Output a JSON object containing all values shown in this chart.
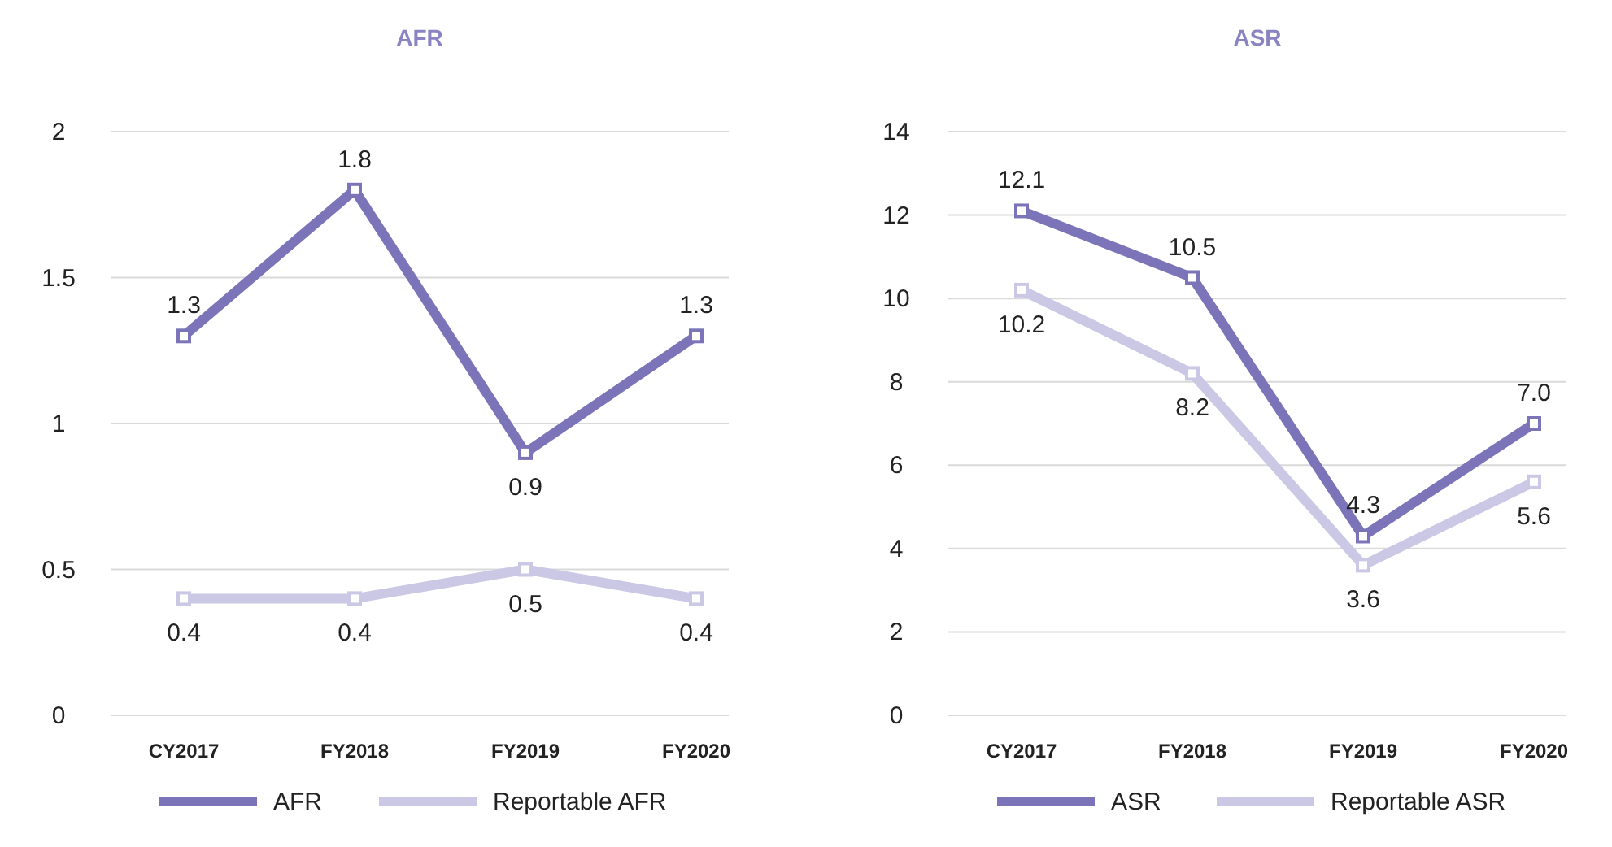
{
  "chart_data": [
    {
      "type": "line",
      "title": "AFR",
      "categories": [
        "CY2017",
        "FY2018",
        "FY2019",
        "FY2020"
      ],
      "ylim": [
        0,
        2
      ],
      "yticks": [
        0,
        0.5,
        1,
        1.5,
        2
      ],
      "grid": "y",
      "legend": "bottom",
      "marker": "square",
      "series": [
        {
          "name": "AFR",
          "color": "#7b74b8",
          "values": [
            1.3,
            1.8,
            0.9,
            1.3
          ],
          "value_labels": [
            "1.3",
            "1.8",
            "0.9",
            "1.3"
          ]
        },
        {
          "name": "Reportable AFR",
          "color": "#cac8e5",
          "values": [
            0.4,
            0.4,
            0.5,
            0.4
          ],
          "value_labels": [
            "0.4",
            "0.4",
            "0.5",
            "0.4"
          ]
        }
      ]
    },
    {
      "type": "line",
      "title": "ASR",
      "categories": [
        "CY2017",
        "FY2018",
        "FY2019",
        "FY2020"
      ],
      "ylim": [
        0,
        14
      ],
      "yticks": [
        0,
        2,
        4,
        6,
        8,
        10,
        12,
        14
      ],
      "grid": "y",
      "legend": "bottom",
      "marker": "square",
      "series": [
        {
          "name": "ASR",
          "color": "#7b74b8",
          "values": [
            12.1,
            10.5,
            4.3,
            7.0
          ],
          "value_labels": [
            "12.1",
            "10.5",
            "4.3",
            "7.0"
          ]
        },
        {
          "name": "Reportable ASR",
          "color": "#cac8e5",
          "values": [
            10.2,
            8.2,
            3.6,
            5.6
          ],
          "value_labels": [
            "10.2",
            "8.2",
            "3.6",
            "5.6"
          ]
        }
      ]
    }
  ]
}
